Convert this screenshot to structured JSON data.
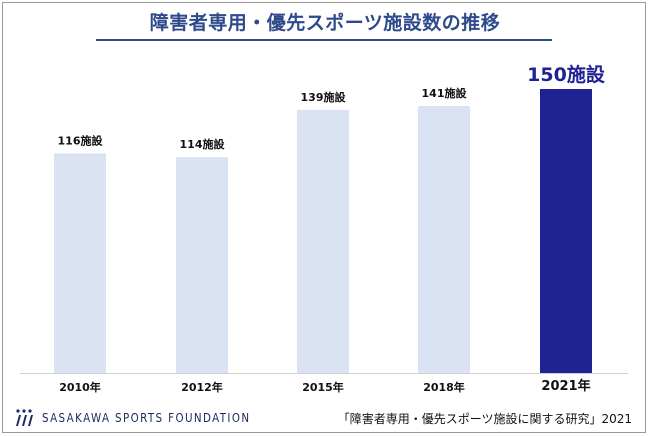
{
  "title": "障害者専用・優先スポーツ施設数の推移",
  "chart_data": {
    "type": "bar",
    "categories": [
      "2010年",
      "2012年",
      "2015年",
      "2018年",
      "2021年"
    ],
    "values": [
      116,
      114,
      139,
      141,
      150
    ],
    "data_labels": [
      "116施設",
      "114施設",
      "139施設",
      "141施設",
      "150施設"
    ],
    "highlight_index": 4,
    "ylim": [
      0,
      150
    ],
    "grid": false,
    "colors": {
      "normal": "#dae3f3",
      "highlight": "#1f2293",
      "label": "#111111",
      "highlight_label": "#1f2293"
    }
  },
  "footer": {
    "logo_text": "SASAKAWA SPORTS FOUNDATION",
    "source": "「障害者専用・優先スポーツ施設に関する研究」2021"
  }
}
